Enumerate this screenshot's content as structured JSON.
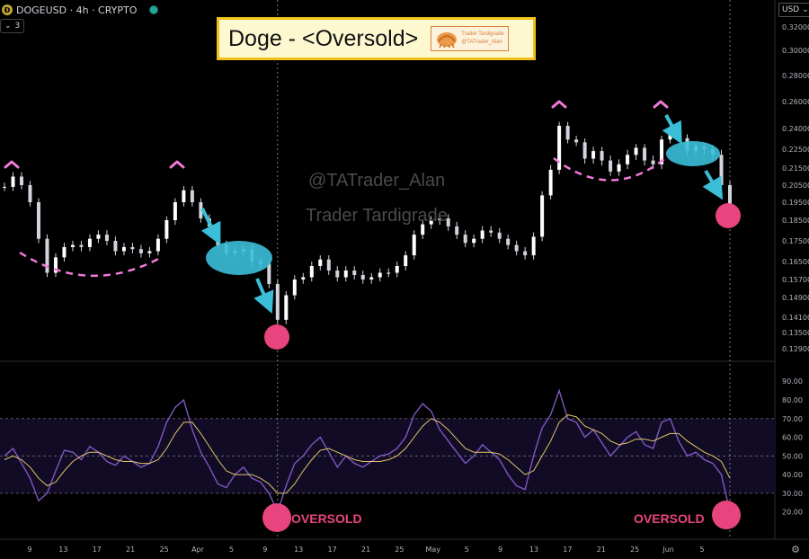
{
  "header": {
    "symbol": "DOGEUSD · 4h · CRYPTO",
    "coin_glyph": "Ð",
    "collapse_label": "3",
    "status_color": "#26a69a"
  },
  "title_box": {
    "title": "Doge - <Oversold>",
    "badge_line1": "Trader Tardigrade",
    "badge_line2": "@TATrader_Alan"
  },
  "currency": "USD",
  "watermarks": [
    "@TATrader_Alan",
    "Trader Tardigrade"
  ],
  "annotations": {
    "oversold_labels": [
      "OVERSOLD",
      "OVERSOLD"
    ],
    "marker_color": "#e8457f",
    "peak_color": "#f07ad8",
    "arrow_color": "#3bbfd9"
  },
  "settings_icon": "gear-icon",
  "chart_data": [
    {
      "type": "line",
      "style": "candlestick",
      "title": "DOGEUSD · 4h · CRYPTO",
      "ylabel": "USD",
      "y_ticks": [
        "0.32000",
        "0.30000",
        "0.28000",
        "0.26000",
        "0.24000",
        "0.22500",
        "0.21500",
        "0.20500",
        "0.19500",
        "0.18500",
        "0.17500",
        "0.16500",
        "0.15700",
        "0.14900",
        "0.14100",
        "0.13500",
        "0.12900"
      ],
      "x_ticks": [
        "9",
        "13",
        "17",
        "21",
        "25",
        "Apr",
        "5",
        "9",
        "13",
        "17",
        "21",
        "25",
        "May",
        "5",
        "9",
        "13",
        "17",
        "21",
        "25",
        "Jun",
        "5"
      ],
      "ylim": [
        0.125,
        0.33
      ],
      "x": [
        "Mar 7",
        "Mar 8",
        "Mar 9",
        "Mar 10",
        "Mar 11",
        "Mar 12",
        "Mar 13",
        "Mar 14",
        "Mar 15",
        "Mar 16",
        "Mar 17",
        "Mar 18",
        "Mar 19",
        "Mar 20",
        "Mar 21",
        "Mar 22",
        "Mar 23",
        "Mar 24",
        "Mar 25",
        "Mar 26",
        "Mar 27",
        "Mar 28",
        "Mar 29",
        "Mar 30",
        "Mar 31",
        "Apr 1",
        "Apr 2",
        "Apr 3",
        "Apr 4",
        "Apr 5",
        "Apr 6",
        "Apr 7",
        "Apr 8",
        "Apr 9",
        "Apr 10",
        "Apr 11",
        "Apr 12",
        "Apr 13",
        "Apr 14",
        "Apr 15",
        "Apr 16",
        "Apr 17",
        "Apr 18",
        "Apr 19",
        "Apr 20",
        "Apr 21",
        "Apr 22",
        "Apr 23",
        "Apr 24",
        "Apr 25",
        "Apr 26",
        "Apr 27",
        "Apr 28",
        "Apr 29",
        "Apr 30",
        "May 1",
        "May 2",
        "May 3",
        "May 4",
        "May 5",
        "May 6",
        "May 7",
        "May 8",
        "May 9",
        "May 10",
        "May 11",
        "May 12",
        "May 13",
        "May 14",
        "May 15",
        "May 16",
        "May 17",
        "May 18",
        "May 19",
        "May 20",
        "May 21",
        "May 22",
        "May 23",
        "May 24",
        "May 25",
        "May 26",
        "May 27",
        "May 28",
        "May 29",
        "May 30",
        "May 31"
      ],
      "series": [
        {
          "name": "DOGEUSD",
          "values": [
            0.204,
            0.21,
            0.205,
            0.195,
            0.176,
            0.16,
            0.167,
            0.172,
            0.173,
            0.172,
            0.176,
            0.178,
            0.175,
            0.17,
            0.172,
            0.171,
            0.169,
            0.17,
            0.176,
            0.185,
            0.195,
            0.202,
            0.195,
            0.186,
            0.182,
            0.173,
            0.169,
            0.17,
            0.171,
            0.165,
            0.164,
            0.155,
            0.14,
            0.15,
            0.157,
            0.158,
            0.163,
            0.166,
            0.161,
            0.158,
            0.161,
            0.159,
            0.157,
            0.158,
            0.16,
            0.16,
            0.163,
            0.168,
            0.178,
            0.183,
            0.185,
            0.186,
            0.182,
            0.178,
            0.174,
            0.176,
            0.18,
            0.179,
            0.176,
            0.173,
            0.17,
            0.168,
            0.177,
            0.199,
            0.214,
            0.242,
            0.232,
            0.23,
            0.22,
            0.224,
            0.219,
            0.213,
            0.217,
            0.222,
            0.226,
            0.219,
            0.217,
            0.232,
            0.239,
            0.233,
            0.224,
            0.227,
            0.225,
            0.222,
            0.205,
            0.19
          ]
        }
      ]
    },
    {
      "type": "line",
      "title": "",
      "y_ticks": [
        "90.00",
        "80.00",
        "70.00",
        "60.00",
        "50.00",
        "40.00",
        "30.00",
        "20.00"
      ],
      "ylim": [
        15,
        93
      ],
      "bands": [
        30,
        50,
        70
      ],
      "x": [
        "Mar 7",
        "Mar 8",
        "Mar 9",
        "Mar 10",
        "Mar 11",
        "Mar 12",
        "Mar 13",
        "Mar 14",
        "Mar 15",
        "Mar 16",
        "Mar 17",
        "Mar 18",
        "Mar 19",
        "Mar 20",
        "Mar 21",
        "Mar 22",
        "Mar 23",
        "Mar 24",
        "Mar 25",
        "Mar 26",
        "Mar 27",
        "Mar 28",
        "Mar 29",
        "Mar 30",
        "Mar 31",
        "Apr 1",
        "Apr 2",
        "Apr 3",
        "Apr 4",
        "Apr 5",
        "Apr 6",
        "Apr 7",
        "Apr 8",
        "Apr 9",
        "Apr 10",
        "Apr 11",
        "Apr 12",
        "Apr 13",
        "Apr 14",
        "Apr 15",
        "Apr 16",
        "Apr 17",
        "Apr 18",
        "Apr 19",
        "Apr 20",
        "Apr 21",
        "Apr 22",
        "Apr 23",
        "Apr 24",
        "Apr 25",
        "Apr 26",
        "Apr 27",
        "Apr 28",
        "Apr 29",
        "Apr 30",
        "May 1",
        "May 2",
        "May 3",
        "May 4",
        "May 5",
        "May 6",
        "May 7",
        "May 8",
        "May 9",
        "May 10",
        "May 11",
        "May 12",
        "May 13",
        "May 14",
        "May 15",
        "May 16",
        "May 17",
        "May 18",
        "May 19",
        "May 20",
        "May 21",
        "May 22",
        "May 23",
        "May 24",
        "May 25",
        "May 26",
        "May 27",
        "May 28",
        "May 29",
        "May 30",
        "May 31"
      ],
      "series": [
        {
          "values": [
            50,
            54,
            46,
            38,
            26,
            30,
            42,
            53,
            52,
            48,
            55,
            52,
            47,
            45,
            50,
            47,
            44,
            46,
            55,
            68,
            76,
            80,
            64,
            52,
            44,
            35,
            33,
            40,
            44,
            38,
            36,
            30,
            20,
            34,
            46,
            50,
            56,
            60,
            52,
            44,
            50,
            46,
            44,
            47,
            50,
            51,
            54,
            60,
            72,
            78,
            74,
            64,
            58,
            52,
            46,
            50,
            56,
            52,
            48,
            40,
            34,
            32,
            50,
            65,
            72,
            85,
            70,
            68,
            60,
            64,
            57,
            50,
            55,
            60,
            63,
            56,
            54,
            68,
            70,
            58,
            50,
            52,
            48,
            46,
            40,
            20
          ]
        },
        {
          "values": [
            48,
            50,
            48,
            44,
            38,
            34,
            36,
            42,
            47,
            50,
            52,
            52,
            50,
            48,
            47,
            47,
            46,
            46,
            48,
            54,
            62,
            68,
            68,
            62,
            55,
            48,
            42,
            40,
            40,
            40,
            38,
            35,
            30,
            30,
            35,
            42,
            48,
            53,
            54,
            52,
            50,
            48,
            47,
            47,
            47,
            48,
            50,
            54,
            60,
            66,
            70,
            68,
            64,
            59,
            54,
            52,
            52,
            52,
            51,
            48,
            44,
            40,
            42,
            50,
            58,
            68,
            72,
            71,
            66,
            64,
            62,
            58,
            56,
            57,
            59,
            59,
            58,
            60,
            62,
            62,
            58,
            55,
            52,
            50,
            47,
            38
          ]
        }
      ]
    }
  ]
}
